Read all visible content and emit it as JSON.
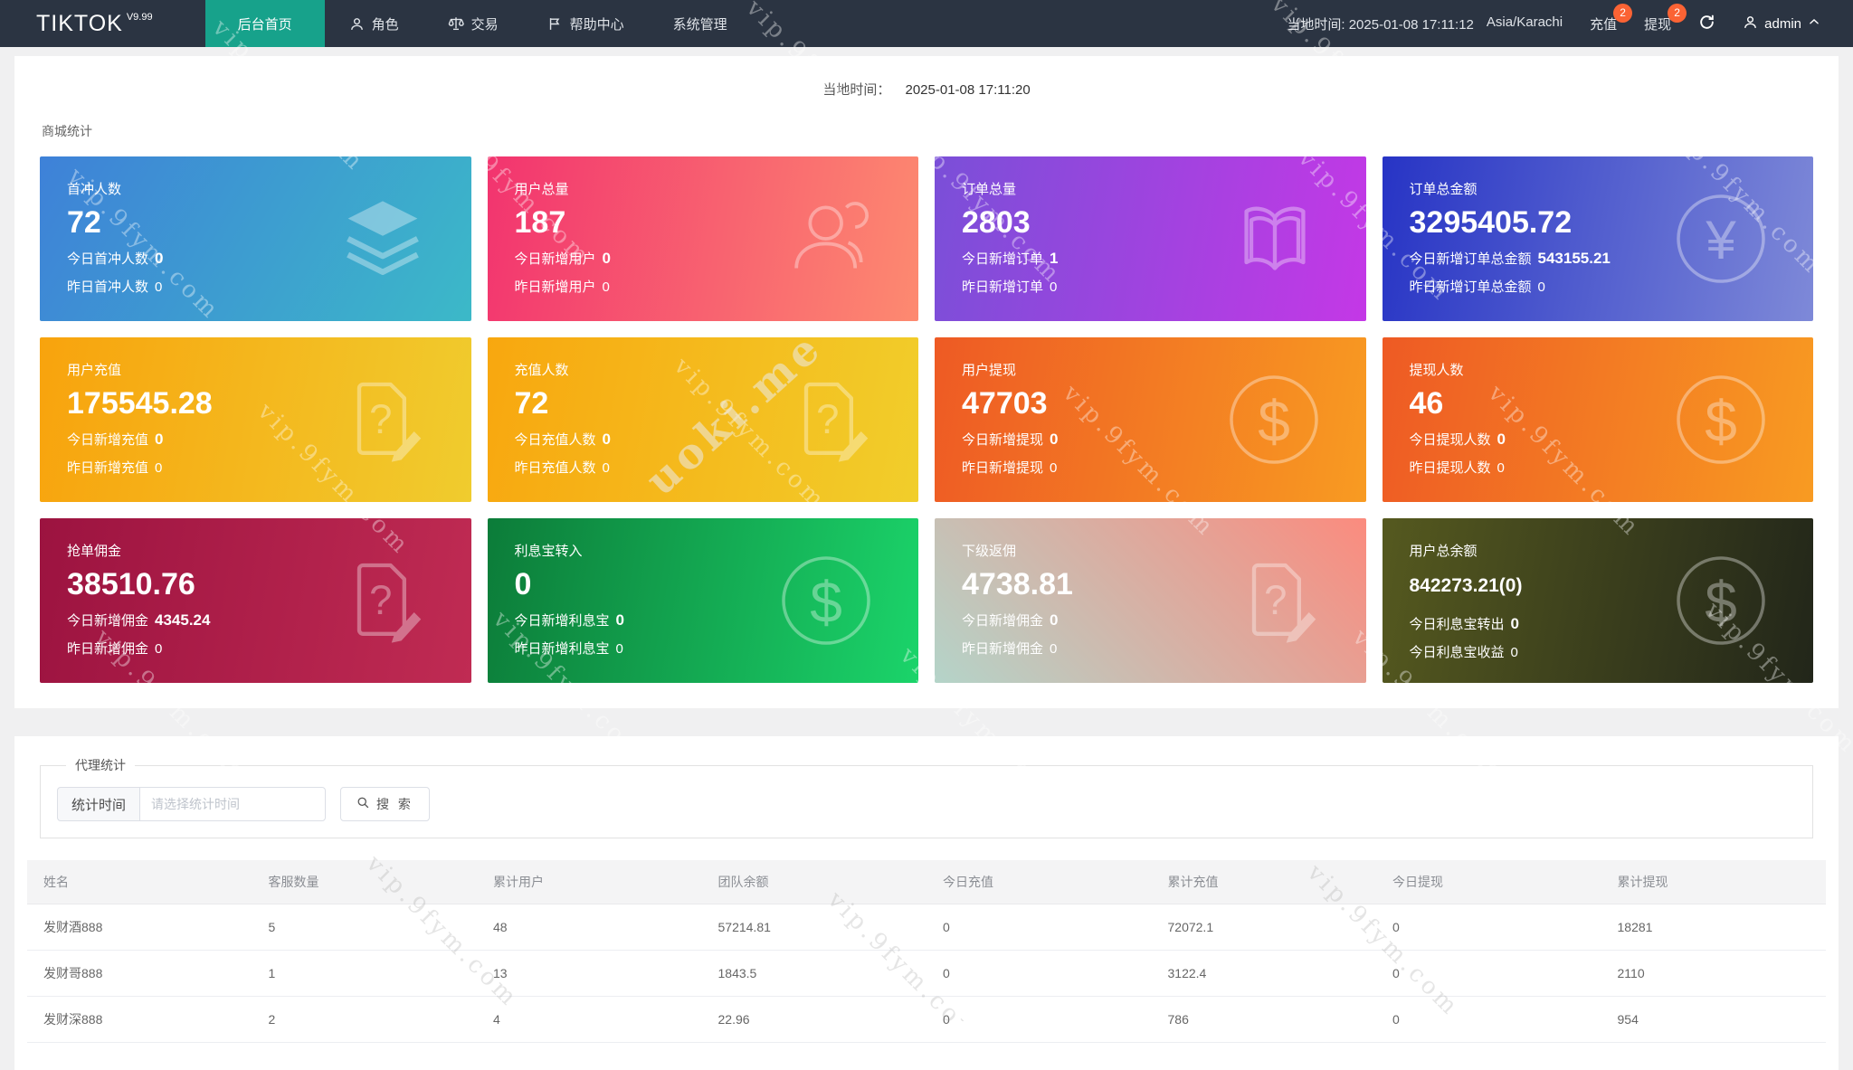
{
  "navbar": {
    "brand": "TIKTOK",
    "brand_version": "V9.99",
    "menu": [
      {
        "label": "后台首页",
        "icon": null,
        "active": true
      },
      {
        "label": "角色",
        "icon": "user",
        "active": false
      },
      {
        "label": "交易",
        "icon": "scales",
        "active": false
      },
      {
        "label": "帮助中心",
        "icon": "flag",
        "active": false
      },
      {
        "label": "系统管理",
        "icon": null,
        "active": false
      }
    ],
    "local_time": "当地时间: 2025-01-08 17:11:12",
    "timezone": "Asia/Karachi",
    "recharge": {
      "label": "充值",
      "badge": "2"
    },
    "withdraw": {
      "label": "提现",
      "badge": "2"
    },
    "user": "admin"
  },
  "overview": {
    "time_label": "当地时间：",
    "time_value": "2025-01-08 17:11:20",
    "section_title": "商城统计",
    "cards": [
      {
        "title": "首冲人数",
        "value": "72",
        "small": false,
        "line1_label": "今日首冲人数",
        "line1_value": "0",
        "line2_label": "昨日首冲人数",
        "line2_value": "0",
        "icon": "layers",
        "angle": "120deg",
        "from": "#3e81d8",
        "to": "#3cb9c8"
      },
      {
        "title": "用户总量",
        "value": "187",
        "small": false,
        "line1_label": "今日新增用户",
        "line1_value": "0",
        "line2_label": "昨日新增用户",
        "line2_value": "0",
        "icon": "users",
        "angle": "100deg",
        "from": "#f2346f",
        "to": "#fd8a70"
      },
      {
        "title": "订单总量",
        "value": "2803",
        "small": false,
        "line1_label": "今日新增订单",
        "line1_value": "1",
        "line2_label": "昨日新增订单",
        "line2_value": "0",
        "icon": "book",
        "angle": "100deg",
        "from": "#7a4fd8",
        "to": "#c438e6"
      },
      {
        "title": "订单总金额",
        "value": "3295405.72",
        "small": false,
        "line1_label": "今日新增订单总金额",
        "line1_value": "543155.21",
        "line2_label": "昨日新增订单总金额",
        "line2_value": "0",
        "icon": "yen",
        "angle": "100deg",
        "from": "#2734c5",
        "to": "#7e89d8"
      },
      {
        "title": "用户充值",
        "value": "175545.28",
        "small": false,
        "line1_label": "今日新增充值",
        "line1_value": "0",
        "line2_label": "昨日新增充值",
        "line2_value": "0",
        "icon": "file",
        "angle": "100deg",
        "from": "#f8a30d",
        "to": "#f0cc2e"
      },
      {
        "title": "充值人数",
        "value": "72",
        "small": false,
        "line1_label": "今日充值人数",
        "line1_value": "0",
        "line2_label": "昨日充值人数",
        "line2_value": "0",
        "icon": "file",
        "angle": "100deg",
        "from": "#f8a70f",
        "to": "#f1ce2b"
      },
      {
        "title": "用户提现",
        "value": "47703",
        "small": false,
        "line1_label": "今日新增提现",
        "line1_value": "0",
        "line2_label": "昨日新增提现",
        "line2_value": "0",
        "icon": "dollar",
        "angle": "100deg",
        "from": "#ee5a24",
        "to": "#f89b22"
      },
      {
        "title": "提现人数",
        "value": "46",
        "small": false,
        "line1_label": "今日提现人数",
        "line1_value": "0",
        "line2_label": "昨日提现人数",
        "line2_value": "0",
        "icon": "dollar",
        "angle": "100deg",
        "from": "#ee5a24",
        "to": "#f89b22"
      },
      {
        "title": "抢单佣金",
        "value": "38510.76",
        "small": false,
        "line1_label": "今日新增佣金",
        "line1_value": "4345.24",
        "line2_label": "昨日新增佣金",
        "line2_value": "0",
        "icon": "file",
        "angle": "100deg",
        "from": "#9c1340",
        "to": "#c02b53"
      },
      {
        "title": "利息宝转入",
        "value": "0",
        "small": false,
        "line1_label": "今日新增利息宝",
        "line1_value": "0",
        "line2_label": "昨日新增利息宝",
        "line2_value": "0",
        "icon": "dollar",
        "angle": "100deg",
        "from": "#0c7c39",
        "to": "#1bd46a"
      },
      {
        "title": "下级返佣",
        "value": "4738.81",
        "small": false,
        "line1_label": "今日新增佣金",
        "line1_value": "0",
        "line2_label": "昨日新增佣金",
        "line2_value": "0",
        "icon": "file",
        "angle": "45deg",
        "from": "#b4d4c9",
        "to": "#fb8b7e"
      },
      {
        "title": "用户总余额",
        "value": "842273.21(0)",
        "small": true,
        "line1_label": "今日利息宝转出",
        "line1_value": "0",
        "line2_label": "今日利息宝收益",
        "line2_value": "0",
        "icon": "dollar",
        "angle": "100deg",
        "from": "#55591f",
        "to": "#22261a"
      }
    ]
  },
  "agent": {
    "legend": "代理统计",
    "time_label": "统计时间",
    "time_placeholder": "请选择统计时间",
    "search_label": "搜 索",
    "table": {
      "headers": [
        "姓名",
        "客服数量",
        "累计用户",
        "团队余额",
        "今日充值",
        "累计充值",
        "今日提现",
        "累计提现"
      ],
      "rows": [
        [
          "发财酒888",
          "5",
          "48",
          "57214.81",
          "0",
          "72072.1",
          "0",
          "18281"
        ],
        [
          "发财哥888",
          "1",
          "13",
          "1843.5",
          "0",
          "3122.4",
          "0",
          "2110"
        ],
        [
          "发财深888",
          "2",
          "4",
          "22.96",
          "0",
          "786",
          "0",
          "954"
        ]
      ]
    }
  },
  "watermark": {
    "text": "vip.9fym.com",
    "center_text": "uoki.me"
  }
}
